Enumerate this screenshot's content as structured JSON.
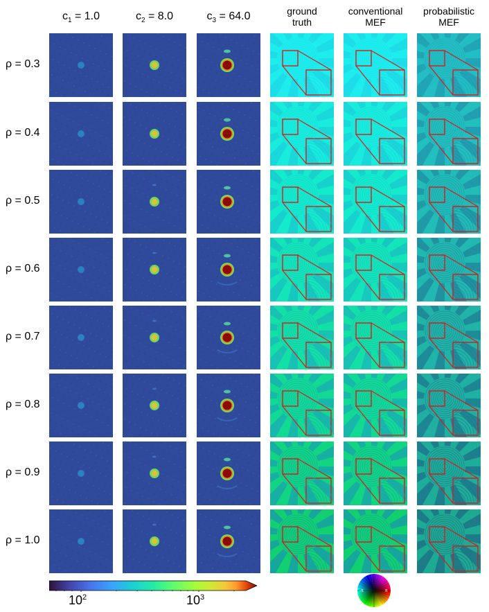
{
  "columns": [
    {
      "kind": "meas",
      "c_label": "c",
      "c_sub": "1",
      "c_value": "= 1.0"
    },
    {
      "kind": "meas",
      "c_label": "c",
      "c_sub": "2",
      "c_value": "= 8.0"
    },
    {
      "kind": "meas",
      "c_label": "c",
      "c_sub": "3",
      "c_value": "= 64.0"
    },
    {
      "kind": "recon",
      "line1": "ground",
      "line2": "truth"
    },
    {
      "kind": "recon",
      "line1": "conventional",
      "line2": "MEF"
    },
    {
      "kind": "recon",
      "line1": "probabilistic",
      "line2": "MEF"
    }
  ],
  "rows": [
    {
      "label": "ρ = 0.3"
    },
    {
      "label": "ρ = 0.4"
    },
    {
      "label": "ρ = 0.5"
    },
    {
      "label": "ρ = 0.6"
    },
    {
      "label": "ρ = 0.7"
    },
    {
      "label": "ρ = 0.8"
    },
    {
      "label": "ρ = 0.9"
    },
    {
      "label": "ρ = 1.0"
    }
  ],
  "colorbar": {
    "scale": "log",
    "colormap": "turbo",
    "extend": "max",
    "ticks": [
      {
        "base": "10",
        "exp": "2"
      },
      {
        "base": "10",
        "exp": "3"
      }
    ]
  },
  "phase_wheel": {
    "left_label": "-π",
    "right_label": "π"
  },
  "colors": {
    "measurement_bg": "#2f4a9a",
    "highlight_box": "#d81b1b"
  }
}
